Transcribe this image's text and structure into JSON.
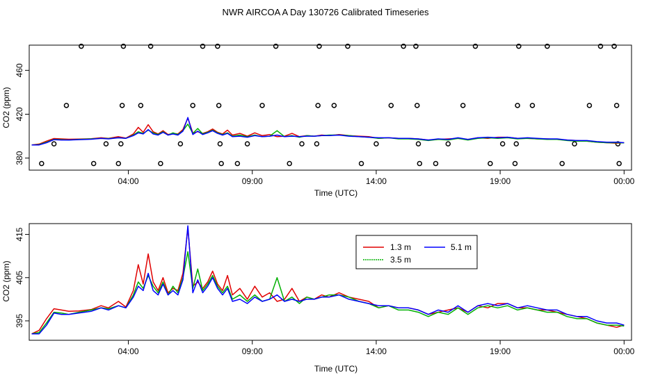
{
  "title": "NWR AIRCOA A  Day 130726  Calibrated Timeseries",
  "chart_data": [
    {
      "type": "line",
      "panel": "top",
      "xlabel": "Time (UTC)",
      "ylabel": "CO2 (ppm)",
      "xlim": [
        0,
        24.3
      ],
      "ylim": [
        369,
        483
      ],
      "x_ticks": [
        {
          "value": 4,
          "label": "04:00"
        },
        {
          "value": 9,
          "label": "09:00"
        },
        {
          "value": 14,
          "label": "14:00"
        },
        {
          "value": 19,
          "label": "19:00"
        },
        {
          "value": 24,
          "label": "00:00"
        }
      ],
      "y_ticks": [
        380,
        420,
        460
      ],
      "series": [
        {
          "color": "#e00000",
          "offset": 0.0
        },
        {
          "color": "#00b000",
          "offset": 0.0
        },
        {
          "color": "#0000ff",
          "offset": 0.0
        }
      ],
      "levels": [
        375,
        393,
        428,
        482
      ],
      "points": [
        {
          "x": 0.5,
          "y": 375
        },
        {
          "x": 1.0,
          "y": 393
        },
        {
          "x": 1.5,
          "y": 428
        },
        {
          "x": 2.1,
          "y": 482
        },
        {
          "x": 2.6,
          "y": 375
        },
        {
          "x": 3.1,
          "y": 393
        },
        {
          "x": 3.6,
          "y": 375
        },
        {
          "x": 3.7,
          "y": 393
        },
        {
          "x": 3.75,
          "y": 428
        },
        {
          "x": 3.8,
          "y": 482
        },
        {
          "x": 4.5,
          "y": 428
        },
        {
          "x": 4.9,
          "y": 482
        },
        {
          "x": 5.3,
          "y": 375
        },
        {
          "x": 6.1,
          "y": 393
        },
        {
          "x": 6.6,
          "y": 428
        },
        {
          "x": 7.0,
          "y": 482
        },
        {
          "x": 7.6,
          "y": 482
        },
        {
          "x": 7.65,
          "y": 428
        },
        {
          "x": 7.7,
          "y": 393
        },
        {
          "x": 7.75,
          "y": 375
        },
        {
          "x": 8.4,
          "y": 375
        },
        {
          "x": 8.8,
          "y": 393
        },
        {
          "x": 9.4,
          "y": 428
        },
        {
          "x": 9.95,
          "y": 482
        },
        {
          "x": 10.5,
          "y": 375
        },
        {
          "x": 11.0,
          "y": 393
        },
        {
          "x": 11.6,
          "y": 393
        },
        {
          "x": 11.65,
          "y": 428
        },
        {
          "x": 11.7,
          "y": 482
        },
        {
          "x": 12.3,
          "y": 428
        },
        {
          "x": 12.85,
          "y": 482
        },
        {
          "x": 13.4,
          "y": 375
        },
        {
          "x": 14.0,
          "y": 393
        },
        {
          "x": 14.6,
          "y": 428
        },
        {
          "x": 15.1,
          "y": 482
        },
        {
          "x": 15.6,
          "y": 482
        },
        {
          "x": 15.65,
          "y": 428
        },
        {
          "x": 15.7,
          "y": 393
        },
        {
          "x": 15.75,
          "y": 375
        },
        {
          "x": 16.4,
          "y": 375
        },
        {
          "x": 16.9,
          "y": 393
        },
        {
          "x": 17.5,
          "y": 428
        },
        {
          "x": 18.0,
          "y": 482
        },
        {
          "x": 18.6,
          "y": 375
        },
        {
          "x": 19.1,
          "y": 393
        },
        {
          "x": 19.6,
          "y": 375
        },
        {
          "x": 19.65,
          "y": 393
        },
        {
          "x": 19.7,
          "y": 428
        },
        {
          "x": 19.75,
          "y": 482
        },
        {
          "x": 20.3,
          "y": 428
        },
        {
          "x": 20.9,
          "y": 482
        },
        {
          "x": 21.5,
          "y": 375
        },
        {
          "x": 22.0,
          "y": 393
        },
        {
          "x": 22.6,
          "y": 428
        },
        {
          "x": 23.05,
          "y": 482
        },
        {
          "x": 23.6,
          "y": 482
        },
        {
          "x": 23.7,
          "y": 428
        },
        {
          "x": 23.75,
          "y": 393
        },
        {
          "x": 23.8,
          "y": 375
        }
      ]
    },
    {
      "type": "line",
      "panel": "bottom",
      "xlabel": "Time (UTC)",
      "ylabel": "CO2 (ppm)",
      "xlim": [
        0,
        24.3
      ],
      "ylim": [
        390.5,
        417.5
      ],
      "x_ticks": [
        {
          "value": 4,
          "label": "04:00"
        },
        {
          "value": 9,
          "label": "09:00"
        },
        {
          "value": 14,
          "label": "14:00"
        },
        {
          "value": 19,
          "label": "19:00"
        },
        {
          "value": 24,
          "label": "00:00"
        }
      ],
      "y_ticks": [
        395,
        405,
        415
      ],
      "legend": {
        "placement": "top-right",
        "entries": [
          {
            "name": "1.3 m",
            "color": "#e00000"
          },
          {
            "name": "3.5 m",
            "color": "#00b000"
          },
          {
            "name": "5.1 m",
            "color": "#0000ff"
          }
        ]
      },
      "series": [
        {
          "name": "1.3 m",
          "color": "#e00000",
          "x": [
            0.1,
            0.4,
            0.7,
            1.0,
            1.3,
            1.6,
            2.0,
            2.5,
            2.9,
            3.2,
            3.6,
            3.9,
            4.2,
            4.4,
            4.6,
            4.8,
            5.0,
            5.2,
            5.4,
            5.6,
            5.8,
            6.0,
            6.2,
            6.4,
            6.6,
            6.8,
            7.0,
            7.2,
            7.4,
            7.6,
            7.8,
            8.0,
            8.2,
            8.5,
            8.8,
            9.1,
            9.4,
            9.7,
            10.0,
            10.3,
            10.6,
            10.9,
            11.2,
            11.5,
            11.8,
            12.1,
            12.5,
            12.9,
            13.3,
            13.7,
            14.1,
            14.5,
            14.9,
            15.3,
            15.7,
            16.1,
            16.5,
            16.9,
            17.3,
            17.7,
            18.1,
            18.5,
            18.9,
            19.3,
            19.7,
            20.1,
            20.5,
            20.9,
            21.3,
            21.7,
            22.1,
            22.5,
            22.9,
            23.3,
            23.7,
            24.0
          ],
          "y": [
            392.0,
            392.8,
            395.5,
            397.8,
            397.5,
            397.2,
            397.3,
            397.6,
            398.5,
            398.0,
            399.5,
            398.2,
            402.0,
            408.0,
            403.5,
            410.5,
            404.0,
            402.0,
            405.0,
            401.5,
            402.5,
            402.0,
            406.0,
            416.5,
            403.0,
            404.0,
            402.5,
            404.0,
            406.5,
            403.5,
            402.0,
            405.5,
            401.0,
            402.5,
            400.0,
            403.0,
            400.5,
            401.5,
            399.5,
            400.0,
            402.5,
            399.5,
            400.5,
            400.0,
            401.0,
            400.5,
            401.5,
            400.5,
            400.0,
            399.5,
            398.0,
            398.5,
            398.0,
            398.0,
            397.5,
            396.5,
            397.0,
            397.5,
            398.0,
            397.0,
            398.5,
            398.0,
            399.0,
            399.0,
            398.0,
            398.0,
            397.5,
            397.5,
            397.0,
            396.5,
            396.0,
            395.5,
            394.5,
            394.0,
            393.5,
            394.0
          ]
        },
        {
          "name": "3.5 m",
          "color": "#00b000",
          "x": [
            0.1,
            0.4,
            0.7,
            1.0,
            1.3,
            1.6,
            2.0,
            2.5,
            2.9,
            3.2,
            3.6,
            3.9,
            4.2,
            4.4,
            4.6,
            4.8,
            5.0,
            5.2,
            5.4,
            5.6,
            5.8,
            6.0,
            6.2,
            6.4,
            6.6,
            6.8,
            7.0,
            7.2,
            7.4,
            7.6,
            7.8,
            8.0,
            8.2,
            8.5,
            8.8,
            9.1,
            9.4,
            9.7,
            10.0,
            10.3,
            10.6,
            10.9,
            11.2,
            11.5,
            11.8,
            12.1,
            12.5,
            12.9,
            13.3,
            13.7,
            14.1,
            14.5,
            14.9,
            15.3,
            15.7,
            16.1,
            16.5,
            16.9,
            17.3,
            17.7,
            18.1,
            18.5,
            18.9,
            19.3,
            19.7,
            20.1,
            20.5,
            20.9,
            21.3,
            21.7,
            22.1,
            22.5,
            22.9,
            23.3,
            23.7,
            24.0
          ],
          "y": [
            392.0,
            392.3,
            394.5,
            397.0,
            396.8,
            396.5,
            397.0,
            397.5,
            398.0,
            397.8,
            398.5,
            398.0,
            401.0,
            404.0,
            402.5,
            405.5,
            403.0,
            401.5,
            404.0,
            401.0,
            403.0,
            401.5,
            405.0,
            411.0,
            402.5,
            407.0,
            402.0,
            403.5,
            405.5,
            403.0,
            401.5,
            403.0,
            400.0,
            401.0,
            399.5,
            401.0,
            399.5,
            400.0,
            405.0,
            399.5,
            400.5,
            399.0,
            400.5,
            400.0,
            400.5,
            401.0,
            401.0,
            400.5,
            399.5,
            399.0,
            398.0,
            398.5,
            397.5,
            397.5,
            397.0,
            396.0,
            397.0,
            396.5,
            398.0,
            396.5,
            398.0,
            398.5,
            398.0,
            398.5,
            397.5,
            398.0,
            397.5,
            397.0,
            397.0,
            396.0,
            395.5,
            395.5,
            394.5,
            394.0,
            394.0,
            393.8
          ]
        },
        {
          "name": "5.1 m",
          "color": "#0000ff",
          "x": [
            0.1,
            0.4,
            0.7,
            1.0,
            1.3,
            1.6,
            2.0,
            2.5,
            2.9,
            3.2,
            3.6,
            3.9,
            4.2,
            4.4,
            4.6,
            4.8,
            5.0,
            5.2,
            5.4,
            5.6,
            5.8,
            6.0,
            6.2,
            6.4,
            6.6,
            6.8,
            7.0,
            7.2,
            7.4,
            7.6,
            7.8,
            8.0,
            8.2,
            8.5,
            8.8,
            9.1,
            9.4,
            9.7,
            10.0,
            10.3,
            10.6,
            10.9,
            11.2,
            11.5,
            11.8,
            12.1,
            12.5,
            12.9,
            13.3,
            13.7,
            14.1,
            14.5,
            14.9,
            15.3,
            15.7,
            16.1,
            16.5,
            16.9,
            17.3,
            17.7,
            18.1,
            18.5,
            18.9,
            19.3,
            19.7,
            20.1,
            20.5,
            20.9,
            21.3,
            21.7,
            22.1,
            22.5,
            22.9,
            23.3,
            23.7,
            24.0
          ],
          "y": [
            392.0,
            392.0,
            394.0,
            396.8,
            396.5,
            396.5,
            396.8,
            397.2,
            398.0,
            397.5,
            398.5,
            398.0,
            400.5,
            403.0,
            402.0,
            406.0,
            402.0,
            401.0,
            403.5,
            401.0,
            402.0,
            401.0,
            404.5,
            417.0,
            401.5,
            404.5,
            401.5,
            403.0,
            405.0,
            402.5,
            401.0,
            402.5,
            399.5,
            400.0,
            399.0,
            400.5,
            399.5,
            400.0,
            401.0,
            399.5,
            400.0,
            399.5,
            400.0,
            400.0,
            400.5,
            400.5,
            401.0,
            400.0,
            399.5,
            399.0,
            398.5,
            398.5,
            398.0,
            398.0,
            397.5,
            396.5,
            397.5,
            397.0,
            398.5,
            397.0,
            398.5,
            399.0,
            398.5,
            399.0,
            398.0,
            398.5,
            398.0,
            397.5,
            397.5,
            396.5,
            396.0,
            396.0,
            395.0,
            394.5,
            394.5,
            394.0
          ]
        }
      ]
    }
  ]
}
